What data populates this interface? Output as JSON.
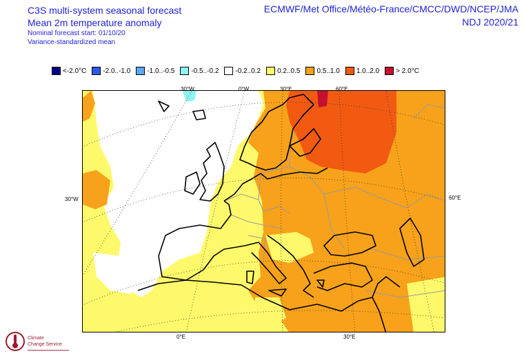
{
  "header": {
    "line1": "C3S multi-system seasonal forecast",
    "line2": "Mean 2m temperature anomaly",
    "line3": "Nominal forecast start: 01/10/20",
    "line4": "Variance-standardized mean",
    "centres": "ECMWF/Met Office/Météo-France/CMCC/DWD/NCEP/JMA",
    "season": "NDJ 2020/21"
  },
  "legend": [
    {
      "label": "<-2.0°C",
      "color": "#00008b"
    },
    {
      "label": "-2.0..-1.0",
      "color": "#2a5ae8"
    },
    {
      "label": "-1.0..-0.5",
      "color": "#5aa9f0"
    },
    {
      "label": "-0.5..-0.2",
      "color": "#8ff5f0"
    },
    {
      "label": "-0.2..0.2",
      "color": "#ffffff"
    },
    {
      "label": "0.2..0.5",
      "color": "#fef96b"
    },
    {
      "label": "0.5..1.0",
      "color": "#f7a21a"
    },
    {
      "label": "1.0..2.0",
      "color": "#f25a12"
    },
    {
      "label": "> 2.0°C",
      "color": "#c8102e"
    }
  ],
  "graticule": {
    "top": [
      "30°W",
      "0°W",
      "30°E",
      "60°E"
    ],
    "left": "30°W",
    "right": "60°E",
    "bottom": [
      "0°E",
      "30°E"
    ]
  },
  "logo": {
    "name": "Climate Change Service",
    "icon": "thermometer-globe-icon"
  }
}
